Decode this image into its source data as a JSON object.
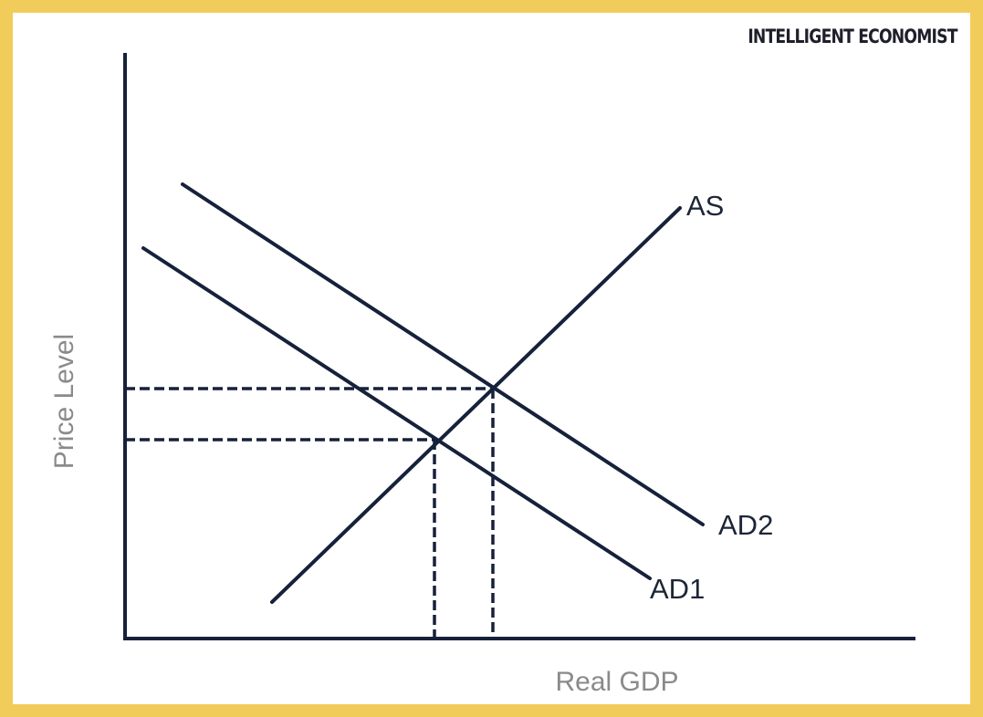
{
  "brand": "INTELLIGENT ECONOMIST",
  "axes": {
    "x_label": "Real GDP",
    "y_label": "Price Level"
  },
  "curves": {
    "as_label": "AS",
    "ad1_label": "AD1",
    "ad2_label": "AD2"
  },
  "colors": {
    "frame": "#F2CC5B",
    "lines": "#16213a",
    "axis_text": "#8a8a8a"
  }
}
